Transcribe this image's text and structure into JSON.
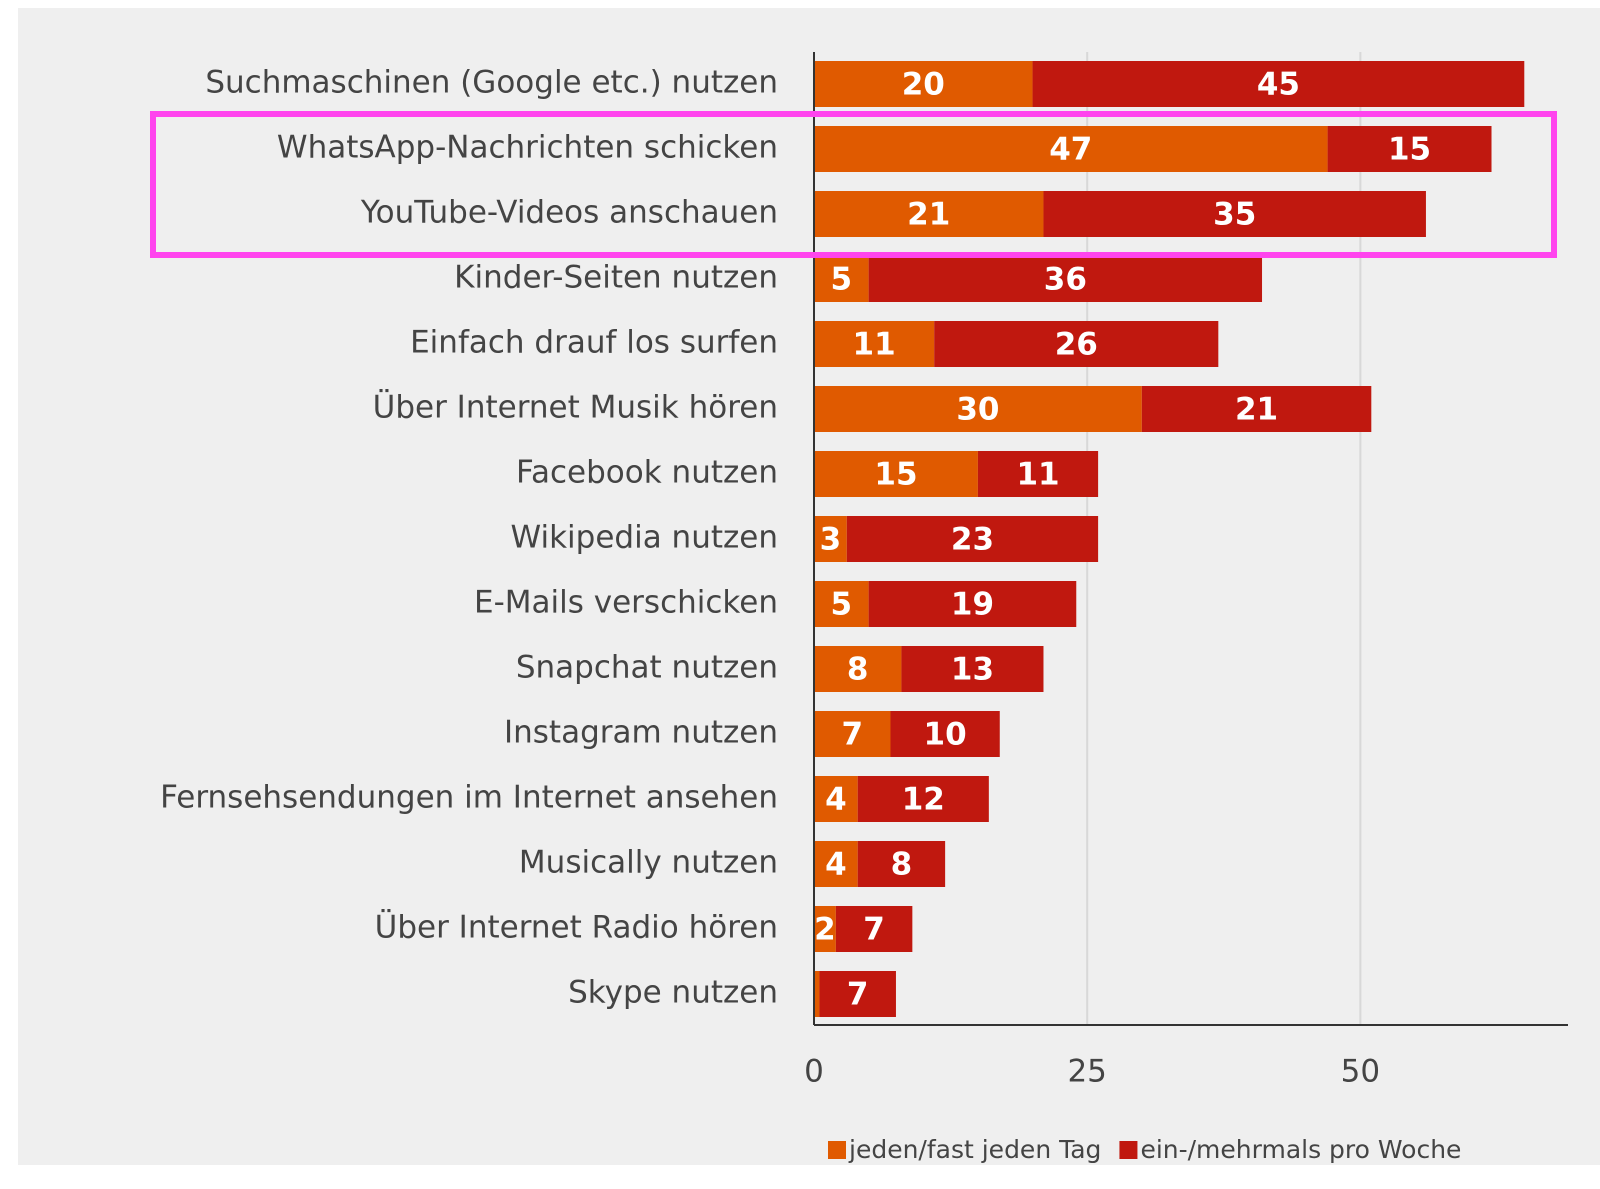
{
  "chart_data": {
    "type": "stacked_bar_horizontal",
    "categories": [
      "Suchmaschinen (Google etc.) nutzen",
      "WhatsApp-Nachrichten schicken",
      "YouTube-Videos anschauen",
      "Kinder-Seiten nutzen",
      "Einfach drauf los surfen",
      "Über Internet Musik hören",
      "Facebook nutzen",
      "Wikipedia nutzen",
      "E-Mails verschicken",
      "Snapchat nutzen",
      "Instagram nutzen",
      "Fernsehsendungen im Internet ansehen",
      "Musically nutzen",
      "Über Internet Radio hören",
      "Skype nutzen"
    ],
    "series": [
      {
        "name": "jeden/fast jeden Tag",
        "color": "#e05a00",
        "values": [
          20,
          47,
          21,
          5,
          11,
          30,
          15,
          3,
          5,
          8,
          7,
          4,
          4,
          2,
          0.5
        ],
        "value_labels": [
          "20",
          "47",
          "21",
          "5",
          "11",
          "30",
          "15",
          "3",
          "5",
          "8",
          "7",
          "4",
          "4",
          "2",
          null
        ]
      },
      {
        "name": "ein-/mehrmals pro Woche",
        "color": "#c0180f",
        "values": [
          45,
          15,
          35,
          36,
          26,
          21,
          11,
          23,
          19,
          13,
          10,
          12,
          8,
          7,
          7
        ]
      }
    ],
    "xlim": [
      0,
      69
    ],
    "xticks": [
      0,
      25,
      50
    ],
    "grid": true,
    "legend": "bottom"
  }
}
